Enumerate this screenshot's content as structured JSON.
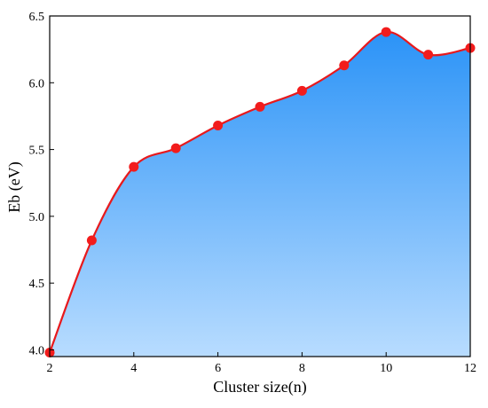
{
  "chart_data": {
    "type": "area",
    "title": "",
    "xlabel": "Cluster size(n)",
    "ylabel": "Eb (eV)",
    "x": [
      2,
      3,
      4,
      5,
      6,
      7,
      8,
      9,
      10,
      11,
      12
    ],
    "series": [
      {
        "values": [
          3.98,
          4.82,
          5.37,
          5.51,
          5.68,
          5.82,
          5.94,
          6.13,
          6.38,
          6.21,
          6.26
        ]
      }
    ],
    "xlim": [
      2,
      12
    ],
    "ylim": [
      3.95,
      6.5
    ],
    "xticks": [
      "2",
      "4",
      "6",
      "8",
      "10",
      "12"
    ],
    "yticks": [
      "4.0",
      "4.5",
      "5.0",
      "5.5",
      "6.0",
      "6.5"
    ],
    "grid": false,
    "legend": "none",
    "colors": {
      "line": "#e8191c",
      "marker": "#f21c1c",
      "fill_top": "#2b93f7",
      "fill_bottom": "#b8dcff",
      "axis": "#000000"
    }
  }
}
